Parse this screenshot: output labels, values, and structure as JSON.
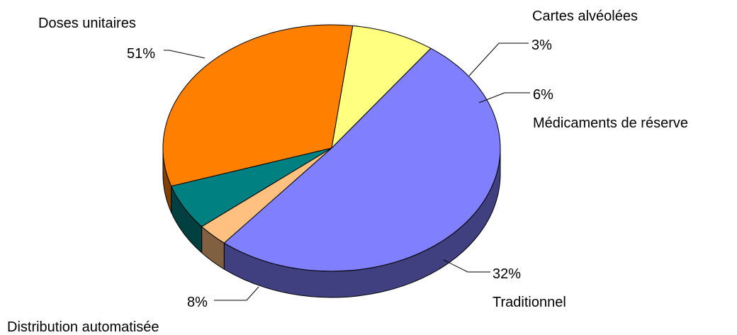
{
  "chart_data": {
    "type": "pie",
    "three_d": true,
    "legend": "none",
    "slices": [
      {
        "label": "Doses unitaires",
        "value": 51,
        "value_label": "51%",
        "color": "#8080ff"
      },
      {
        "label": "Cartes alvéolées",
        "value": 3,
        "value_label": "3%",
        "color": "#ffc080"
      },
      {
        "label": "Médicaments de réserve",
        "value": 6,
        "value_label": "6%",
        "color": "#008080"
      },
      {
        "label": "Traditionnel",
        "value": 32,
        "value_label": "32%",
        "color": "#ff8000"
      },
      {
        "label": "Distribution automatisée",
        "value": 8,
        "value_label": "8%",
        "color": "#ffff80"
      }
    ]
  }
}
